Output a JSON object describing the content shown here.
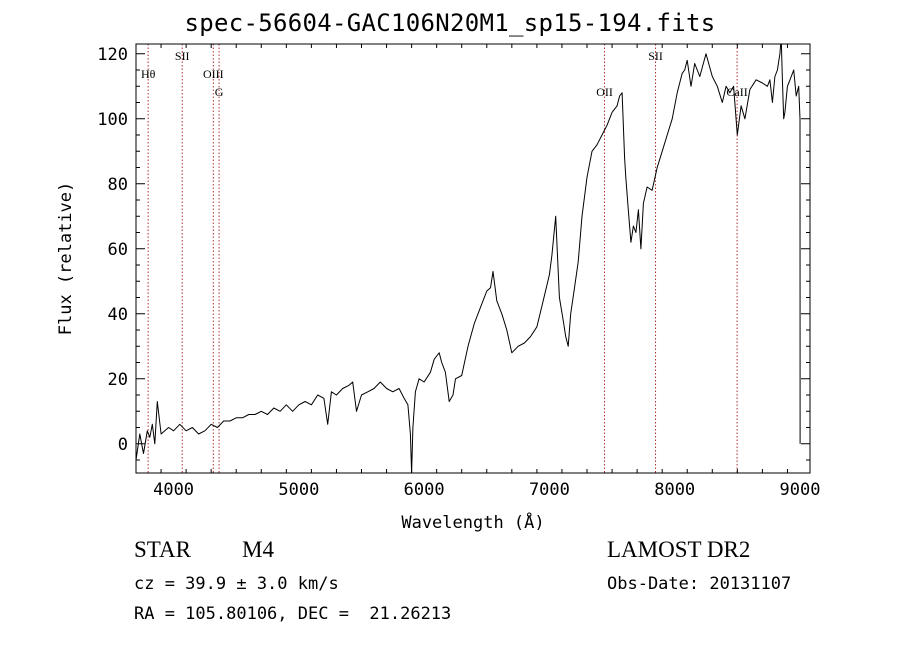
{
  "title": "spec-56604-GAC106N20M1_sp15-194.fits",
  "chart_data": {
    "type": "line",
    "title": "spec-56604-GAC106N20M1_sp15-194.fits",
    "xlabel": "Wavelength (Å)",
    "ylabel": "Flux (relative)",
    "xlim": [
      3700,
      9080
    ],
    "ylim": [
      -9,
      123
    ],
    "xticks": [
      4000,
      5000,
      6000,
      7000,
      8000,
      9000
    ],
    "yticks": [
      0,
      20,
      40,
      60,
      80,
      100,
      120
    ],
    "grid": false,
    "line_color": "#000000",
    "marker_color": "#b03030",
    "series": [
      {
        "x": [
          3700,
          3730,
          3760,
          3790,
          3810,
          3830,
          3850,
          3870,
          3900,
          3930,
          3960,
          4000,
          4050,
          4100,
          4150,
          4200,
          4250,
          4300,
          4350,
          4400,
          4450,
          4500,
          4550,
          4600,
          4650,
          4700,
          4750,
          4800,
          4850,
          4900,
          4950,
          5000,
          5050,
          5100,
          5150,
          5200,
          5230,
          5260,
          5300,
          5350,
          5400,
          5430,
          5460,
          5500,
          5550,
          5600,
          5650,
          5700,
          5750,
          5800,
          5840,
          5870,
          5890,
          5900,
          5910,
          5930,
          5960,
          6000,
          6050,
          6080,
          6100,
          6120,
          6140,
          6170,
          6200,
          6230,
          6250,
          6300,
          6350,
          6400,
          6450,
          6500,
          6530,
          6550,
          6580,
          6620,
          6660,
          6700,
          6750,
          6800,
          6850,
          6900,
          6950,
          7000,
          7020,
          7050,
          7080,
          7110,
          7130,
          7150,
          7170,
          7200,
          7230,
          7260,
          7300,
          7340,
          7380,
          7420,
          7460,
          7500,
          7540,
          7560,
          7580,
          7600,
          7610,
          7630,
          7650,
          7670,
          7690,
          7710,
          7730,
          7750,
          7780,
          7820,
          7860,
          7900,
          7940,
          7980,
          8020,
          8060,
          8080,
          8100,
          8130,
          8160,
          8200,
          8250,
          8300,
          8340,
          8380,
          8410,
          8440,
          8470,
          8500,
          8530,
          8560,
          8600,
          8650,
          8700,
          8740,
          8760,
          8780,
          8800,
          8820,
          8840,
          8850,
          8860,
          8870,
          8880,
          8900,
          8920,
          8950,
          8970,
          8990,
          9000,
          9001
        ],
        "y": [
          -5,
          3,
          -3,
          4,
          2,
          6,
          0,
          13,
          3,
          4,
          5,
          4,
          6,
          4,
          5,
          3,
          4,
          6,
          5,
          7,
          7,
          8,
          8,
          9,
          9,
          10,
          9,
          11,
          10,
          12,
          10,
          12,
          13,
          12,
          15,
          14,
          6,
          16,
          15,
          17,
          18,
          19,
          10,
          15,
          16,
          17,
          19,
          17,
          16,
          17,
          14,
          12,
          3,
          -9,
          5,
          16,
          20,
          19,
          22,
          26,
          27,
          28,
          25,
          22,
          13,
          15,
          20,
          21,
          30,
          37,
          42,
          47,
          48,
          53,
          44,
          40,
          35,
          28,
          30,
          31,
          33,
          36,
          44,
          52,
          58,
          70,
          45,
          38,
          33,
          30,
          40,
          48,
          56,
          70,
          82,
          90,
          92,
          95,
          98,
          102,
          104,
          107,
          108,
          88,
          82,
          72,
          62,
          67,
          65,
          72,
          60,
          74,
          79,
          78,
          85,
          90,
          95,
          100,
          108,
          114,
          115,
          118,
          110,
          117,
          113,
          120,
          113,
          110,
          105,
          110,
          108,
          110,
          95,
          104,
          100,
          109,
          112,
          111,
          110,
          112,
          105,
          113,
          115,
          120,
          125,
          112,
          100,
          102,
          110,
          112,
          115,
          107,
          110,
          100,
          0
        ]
      }
    ],
    "line_markers": [
      {
        "label": "Hθ",
        "x": 3797,
        "row": 1
      },
      {
        "label": "SII",
        "x": 4069,
        "row": 0
      },
      {
        "label": "OIII",
        "x": 4317,
        "row": 1
      },
      {
        "label": "G",
        "x": 4363,
        "row": 2
      },
      {
        "label": "OII",
        "x": 7440,
        "row": 2
      },
      {
        "label": "SII",
        "x": 7847,
        "row": 0
      },
      {
        "label": "CaII",
        "x": 8498,
        "row": 2
      }
    ]
  },
  "info": {
    "object_class": "STAR",
    "subclass": "M4",
    "survey": "LAMOST DR2",
    "redshift": "cz = 39.9 ± 3.0 km/s",
    "obs_date": "Obs-Date: 20131107",
    "coords": "RA = 105.80106, DEC =  21.26213"
  }
}
